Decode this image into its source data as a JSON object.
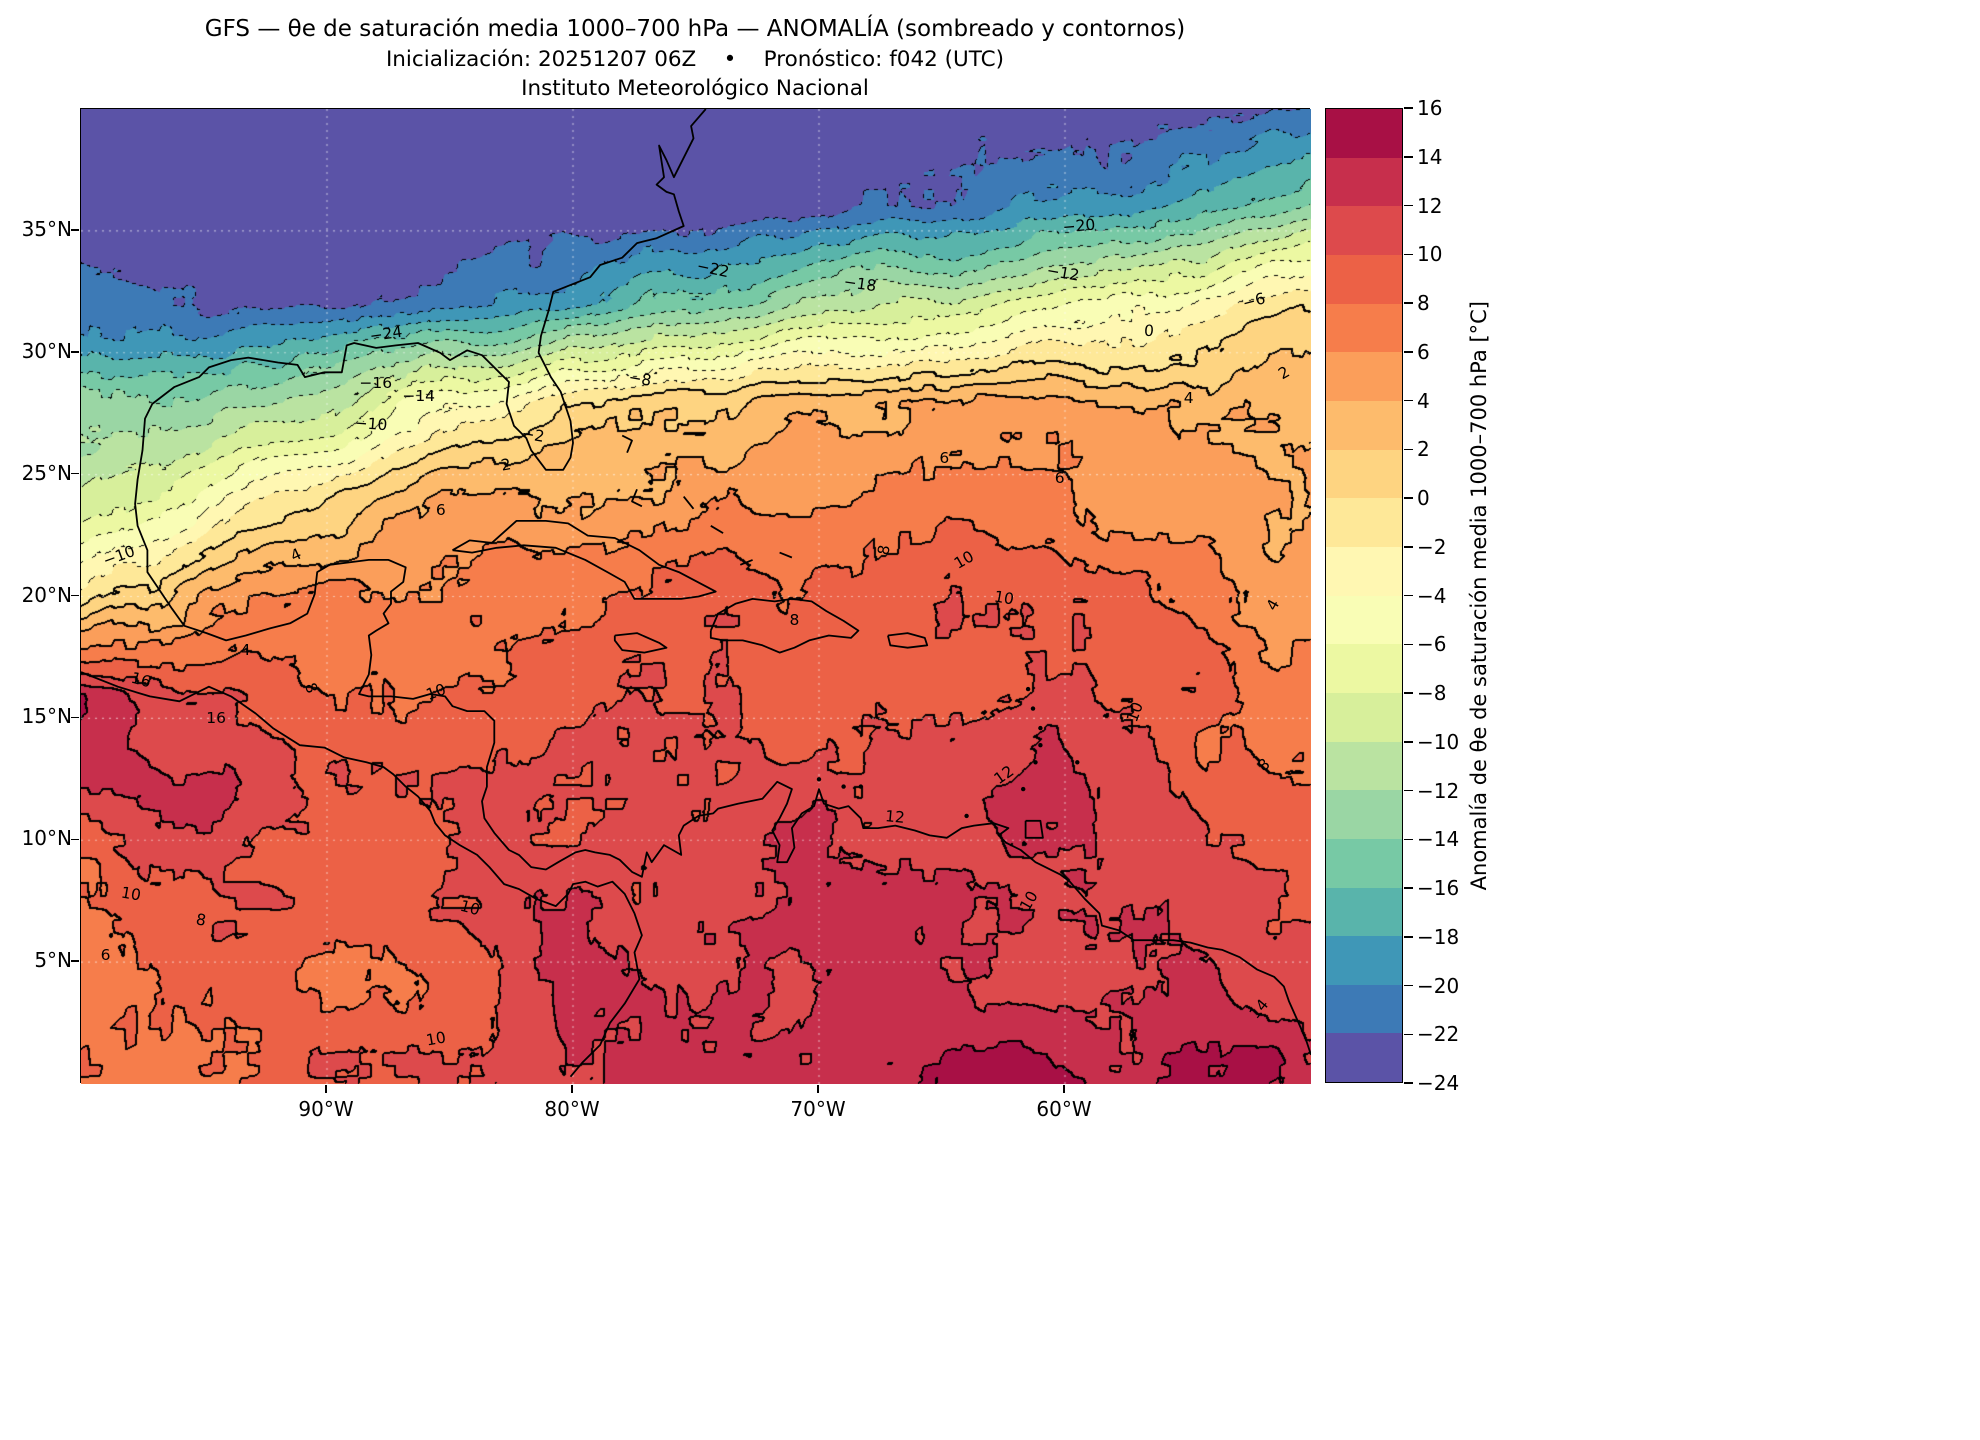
{
  "title": {
    "line1": "GFS — θe de saturación media 1000–700 hPa — ANOMALÍA (sombreado y contornos)",
    "line2": "Inicialización: 20251207 06Z    •    Pronóstico: f042 (UTC)",
    "line3": "Instituto Meteorológico Nacional"
  },
  "axes": {
    "x_ticks": [
      {
        "label": "90°W",
        "lon": -90
      },
      {
        "label": "80°W",
        "lon": -80
      },
      {
        "label": "70°W",
        "lon": -70
      },
      {
        "label": "60°W",
        "lon": -60
      }
    ],
    "y_ticks": [
      {
        "label": "35°N",
        "lat": 35
      },
      {
        "label": "30°N",
        "lat": 30
      },
      {
        "label": "25°N",
        "lat": 25
      },
      {
        "label": "20°N",
        "lat": 20
      },
      {
        "label": "15°N",
        "lat": 15
      },
      {
        "label": "10°N",
        "lat": 10
      },
      {
        "label": "5°N",
        "lat": 5
      }
    ]
  },
  "map": {
    "extent": {
      "lon_min": -100,
      "lon_max": -50,
      "lat_min": 0,
      "lat_max": 40
    }
  },
  "colorbar": {
    "label": "Anomalía de θe de saturación media 1000–700 hPa [°C]",
    "units": "°C",
    "min": -24,
    "max": 16,
    "step": 2,
    "tick_values": [
      16,
      14,
      12,
      10,
      8,
      6,
      4,
      2,
      0,
      -2,
      -4,
      -6,
      -8,
      -10,
      -12,
      -14,
      -16,
      -18,
      -20,
      -22,
      -24
    ],
    "colors": [
      "#5b53a7",
      "#3d7ab6",
      "#3f97b7",
      "#59b4ab",
      "#77c9a5",
      "#9ad6a4",
      "#bae3a1",
      "#d7ef9b",
      "#ecf8a2",
      "#f9fdb5",
      "#fff7b2",
      "#fee898",
      "#fed481",
      "#fdbb6c",
      "#fb9e5a",
      "#f67d4b",
      "#ec6146",
      "#dd4a4c",
      "#c72f4c",
      "#a81045"
    ]
  },
  "chart_data": {
    "type": "heatmap",
    "title": "GFS — θe de saturación media 1000–700 hPa — ANOMALÍA (sombreado y contornos)",
    "subtitle": "Inicialización: 20251207 06Z • Pronóstico: f042 (UTC)",
    "source": "Instituto Meteorológico Nacional",
    "units": "°C",
    "x_label_ticks": [
      "90°W",
      "80°W",
      "70°W",
      "60°W"
    ],
    "y_label_ticks": [
      "35°N",
      "30°N",
      "25°N",
      "20°N",
      "15°N",
      "10°N",
      "5°N"
    ],
    "x": [
      -100,
      -95,
      -90,
      -85,
      -80,
      -75,
      -70,
      -65,
      -60,
      -55,
      -50
    ],
    "y": [
      0,
      4,
      8,
      12,
      16,
      20,
      24,
      28,
      32,
      36,
      40
    ],
    "values": [
      [
        7,
        8,
        9,
        10,
        12,
        13,
        14,
        14,
        14,
        14,
        13
      ],
      [
        6,
        8,
        8,
        9,
        12,
        11,
        13,
        13,
        12,
        12,
        11
      ],
      [
        8,
        10,
        9,
        10,
        11,
        10,
        12,
        12,
        11,
        10,
        9
      ],
      [
        12,
        13,
        10,
        10,
        10,
        10,
        11,
        12,
        12,
        10,
        8
      ],
      [
        14,
        10,
        8,
        9,
        9,
        9,
        10,
        10,
        11,
        9,
        8
      ],
      [
        -2,
        4,
        6,
        7,
        8,
        8,
        9,
        10,
        9,
        7,
        5
      ],
      [
        -10,
        -5,
        1,
        4,
        5,
        5,
        6,
        6,
        6,
        6,
        5
      ],
      [
        -12,
        -13,
        -11,
        -5,
        -1,
        2,
        3,
        4,
        4,
        4,
        4
      ],
      [
        -22,
        -23,
        -22,
        -20,
        -18,
        -15,
        -12,
        -9,
        -6,
        -3,
        0
      ],
      [
        -24,
        -24,
        -24,
        -24,
        -24,
        -24,
        -23,
        -22,
        -20,
        -17,
        -13
      ],
      [
        -24,
        -24,
        -24,
        -24,
        -24,
        -24,
        -24,
        -24,
        -23,
        -22,
        -21
      ]
    ],
    "value_range": [
      -24,
      16
    ],
    "contour_interval": 2,
    "negative_contours_dotted": true,
    "contour_labels": [
      {
        "t": "−24",
        "x": 24.8,
        "y": 23.1,
        "r": -8
      },
      {
        "t": "−22",
        "x": 51.5,
        "y": 16.4,
        "r": 12
      },
      {
        "t": "−20",
        "x": 81.3,
        "y": 12.0,
        "r": -5
      },
      {
        "t": "−18",
        "x": 63.4,
        "y": 18.0,
        "r": 8
      },
      {
        "t": "−16",
        "x": 24.0,
        "y": 28.2,
        "r": 0
      },
      {
        "t": "−14",
        "x": 27.5,
        "y": 29.5,
        "r": 0
      },
      {
        "t": "−12",
        "x": 80.0,
        "y": 16.9,
        "r": 10
      },
      {
        "t": "−10",
        "x": 23.6,
        "y": 32.4,
        "r": 4
      },
      {
        "t": "−10",
        "x": 3.1,
        "y": 45.9,
        "r": -20
      },
      {
        "t": "−8",
        "x": 45.5,
        "y": 27.8,
        "r": 10
      },
      {
        "t": "−6",
        "x": 95.5,
        "y": 19.7,
        "r": -15
      },
      {
        "t": "−2",
        "x": 36.8,
        "y": 33.5,
        "r": 10
      },
      {
        "t": "0",
        "x": 87.0,
        "y": 22.8,
        "r": 5
      },
      {
        "t": "2",
        "x": 34.6,
        "y": 36.6,
        "r": -10
      },
      {
        "t": "2",
        "x": 98.0,
        "y": 27.1,
        "r": -30
      },
      {
        "t": "4",
        "x": 17.5,
        "y": 45.8,
        "r": -25
      },
      {
        "t": "4",
        "x": 90.2,
        "y": 29.7,
        "r": 0
      },
      {
        "t": "4",
        "x": 13.4,
        "y": 55.6,
        "r": 0
      },
      {
        "t": "4",
        "x": 97.1,
        "y": 51.0,
        "r": -60
      },
      {
        "t": "6",
        "x": 29.3,
        "y": 41.2,
        "r": 0
      },
      {
        "t": "6",
        "x": 70.3,
        "y": 35.9,
        "r": 0
      },
      {
        "t": "6",
        "x": 79.7,
        "y": 37.9,
        "r": 0
      },
      {
        "t": "6",
        "x": 2.0,
        "y": 86.9,
        "r": 0
      },
      {
        "t": "8",
        "x": 65.4,
        "y": 45.3,
        "r": -80
      },
      {
        "t": "8",
        "x": 18.7,
        "y": 59.5,
        "r": 70
      },
      {
        "t": "8",
        "x": 58.1,
        "y": 52.5,
        "r": 0
      },
      {
        "t": "8",
        "x": 96.3,
        "y": 67.4,
        "r": -40
      },
      {
        "t": "8",
        "x": 9.8,
        "y": 83.3,
        "r": 10
      },
      {
        "t": "10",
        "x": 71.9,
        "y": 46.4,
        "r": -30
      },
      {
        "t": "10",
        "x": 75.2,
        "y": 50.3,
        "r": 10
      },
      {
        "t": "10",
        "x": 28.9,
        "y": 59.9,
        "r": -20
      },
      {
        "t": "10",
        "x": 85.8,
        "y": 62.0,
        "r": -70
      },
      {
        "t": "10",
        "x": 4.1,
        "y": 80.7,
        "r": 10
      },
      {
        "t": "10",
        "x": 31.7,
        "y": 82.1,
        "r": 15
      },
      {
        "t": "10",
        "x": 77.2,
        "y": 81.4,
        "r": -60
      },
      {
        "t": "10",
        "x": 28.9,
        "y": 95.6,
        "r": -10
      },
      {
        "t": "12",
        "x": 75.2,
        "y": 68.4,
        "r": -35
      },
      {
        "t": "12",
        "x": 66.3,
        "y": 72.8,
        "r": 5
      },
      {
        "t": "14",
        "x": 95.9,
        "y": 92.5,
        "r": -50
      },
      {
        "t": "16",
        "x": 4.9,
        "y": 58.7,
        "r": 15
      },
      {
        "t": "16",
        "x": 11.0,
        "y": 62.6,
        "r": 0
      }
    ]
  }
}
